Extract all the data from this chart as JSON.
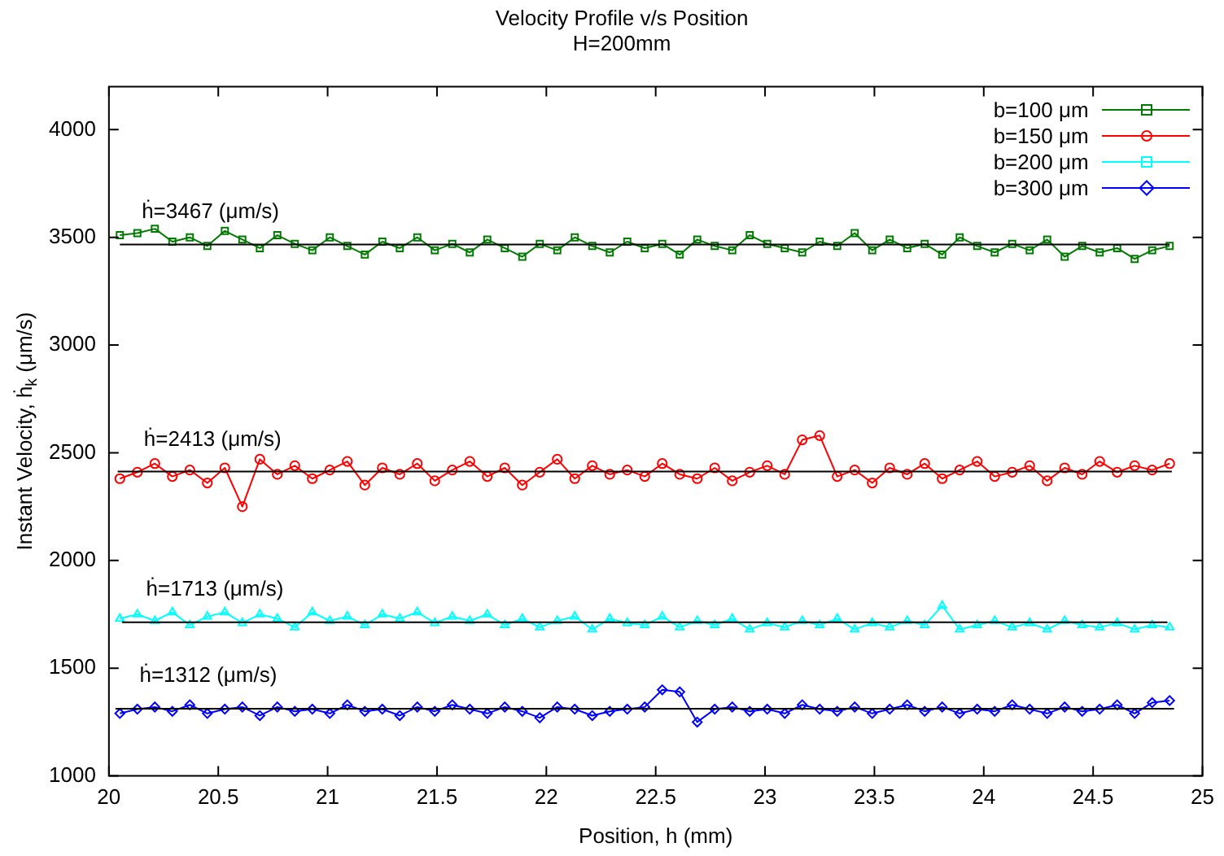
{
  "chart_data": {
    "type": "line",
    "title": "Velocity Profile v/s Position",
    "subtitle": "H=200mm",
    "xlabel": "Position, h (mm)",
    "ylabel": "Instant Velocity, ḣ$_{k}$ (μm/s)",
    "x": [
      20.05,
      20.13,
      20.21,
      20.29,
      20.37,
      20.45,
      20.53,
      20.61,
      20.69,
      20.77,
      20.85,
      20.93,
      21.01,
      21.09,
      21.17,
      21.25,
      21.33,
      21.41,
      21.49,
      21.57,
      21.65,
      21.73,
      21.81,
      21.89,
      21.97,
      22.05,
      22.13,
      22.21,
      22.29,
      22.37,
      22.45,
      22.53,
      22.61,
      22.69,
      22.77,
      22.85,
      22.93,
      23.01,
      23.09,
      23.17,
      23.25,
      23.33,
      23.41,
      23.49,
      23.57,
      23.65,
      23.73,
      23.81,
      23.89,
      23.97,
      24.05,
      24.13,
      24.21,
      24.29,
      24.37,
      24.45,
      24.53,
      24.61,
      24.69,
      24.77,
      24.85
    ],
    "series": [
      {
        "name": "b=100 μm",
        "color": "#007a00",
        "marker": "square",
        "values": [
          3510,
          3520,
          3540,
          3480,
          3500,
          3460,
          3530,
          3490,
          3450,
          3510,
          3470,
          3440,
          3500,
          3460,
          3420,
          3480,
          3450,
          3500,
          3440,
          3470,
          3430,
          3490,
          3450,
          3410,
          3470,
          3440,
          3500,
          3460,
          3430,
          3480,
          3450,
          3470,
          3420,
          3490,
          3460,
          3440,
          3510,
          3470,
          3450,
          3430,
          3480,
          3460,
          3520,
          3440,
          3490,
          3450,
          3470,
          3420,
          3500,
          3460,
          3430,
          3470,
          3440,
          3490,
          3410,
          3460,
          3430,
          3450,
          3400,
          3440,
          3460
        ]
      },
      {
        "name": "b=150 μm",
        "color": "#ff0000",
        "marker": "circle",
        "values": [
          2380,
          2410,
          2450,
          2390,
          2420,
          2360,
          2430,
          2250,
          2470,
          2400,
          2440,
          2380,
          2420,
          2460,
          2350,
          2430,
          2400,
          2450,
          2370,
          2420,
          2460,
          2390,
          2430,
          2350,
          2410,
          2470,
          2380,
          2440,
          2400,
          2420,
          2390,
          2450,
          2400,
          2380,
          2430,
          2370,
          2410,
          2440,
          2400,
          2560,
          2580,
          2390,
          2420,
          2360,
          2430,
          2400,
          2450,
          2380,
          2420,
          2460,
          2390,
          2410,
          2440,
          2370,
          2430,
          2400,
          2460,
          2410,
          2440,
          2420,
          2450
        ]
      },
      {
        "name": "b=200 μm",
        "color": "#00ffff",
        "marker": "triangle",
        "values": [
          1730,
          1750,
          1720,
          1760,
          1700,
          1740,
          1760,
          1710,
          1750,
          1730,
          1690,
          1760,
          1720,
          1740,
          1700,
          1750,
          1730,
          1760,
          1710,
          1740,
          1720,
          1750,
          1700,
          1730,
          1690,
          1720,
          1740,
          1680,
          1730,
          1710,
          1700,
          1740,
          1690,
          1720,
          1700,
          1730,
          1680,
          1710,
          1690,
          1720,
          1700,
          1730,
          1680,
          1710,
          1690,
          1720,
          1700,
          1790,
          1680,
          1700,
          1720,
          1690,
          1710,
          1680,
          1720,
          1700,
          1690,
          1710,
          1680,
          1700,
          1690
        ]
      },
      {
        "name": "b=300 μm",
        "color": "#0000ff",
        "marker": "diamond",
        "values": [
          1290,
          1310,
          1320,
          1300,
          1330,
          1290,
          1310,
          1320,
          1280,
          1320,
          1300,
          1310,
          1290,
          1330,
          1300,
          1310,
          1280,
          1320,
          1300,
          1330,
          1310,
          1290,
          1320,
          1300,
          1270,
          1320,
          1310,
          1280,
          1300,
          1310,
          1320,
          1400,
          1390,
          1250,
          1310,
          1320,
          1300,
          1310,
          1290,
          1330,
          1310,
          1300,
          1320,
          1290,
          1310,
          1330,
          1300,
          1320,
          1290,
          1310,
          1300,
          1330,
          1310,
          1290,
          1320,
          1300,
          1310,
          1330,
          1290,
          1340,
          1350
        ]
      },
      {
        "color": "#000000",
        "marker": "none",
        "x": [
          20.05,
          24.85
        ],
        "values": [
          3467,
          3467
        ]
      },
      {
        "color": "#000000",
        "marker": "none",
        "x": [
          20.04,
          24.86
        ],
        "values": [
          2413,
          2413
        ]
      },
      {
        "color": "#000000",
        "marker": "none",
        "x": [
          20.06,
          24.84
        ],
        "values": [
          1713,
          1713
        ]
      },
      {
        "color": "#000000",
        "marker": "none",
        "x": [
          20.03,
          24.87
        ],
        "values": [
          1312,
          1312
        ]
      }
    ],
    "annotations": [
      {
        "text": "ḣ=3467 (μm/s)",
        "x": 20.15,
        "y": 3467
      },
      {
        "text": "ḣ=2413 (μm/s)",
        "x": 20.16,
        "y": 2413
      },
      {
        "text": "ḣ=1713 (μm/s)",
        "x": 20.17,
        "y": 1713
      },
      {
        "text": "ḣ=1312 (μm/s)",
        "x": 20.14,
        "y": 1312
      }
    ],
    "xlim": [
      20,
      25
    ],
    "xticks": [
      20,
      20.5,
      21,
      21.5,
      22,
      22.5,
      23,
      23.5,
      24,
      24.5,
      25
    ],
    "ylim": [
      1000,
      4200
    ],
    "yticks": [
      1000,
      1500,
      2000,
      2500,
      3000,
      3500,
      4000
    ],
    "grid": false,
    "legend": "top right"
  }
}
